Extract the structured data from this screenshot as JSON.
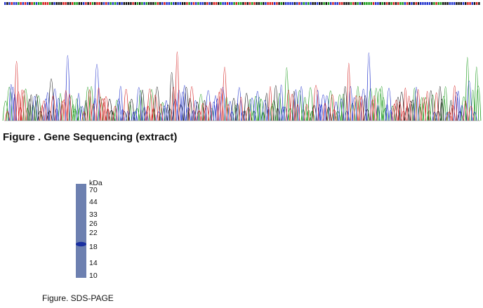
{
  "sequencing": {
    "caption": "Figure . Gene Sequencing (extract)"
  },
  "sds_page": {
    "unit": "kDa",
    "markers": [
      "70",
      "44",
      "33",
      "26",
      "22",
      "18",
      "14",
      "10"
    ],
    "caption": "Figure. SDS-PAGE"
  }
}
